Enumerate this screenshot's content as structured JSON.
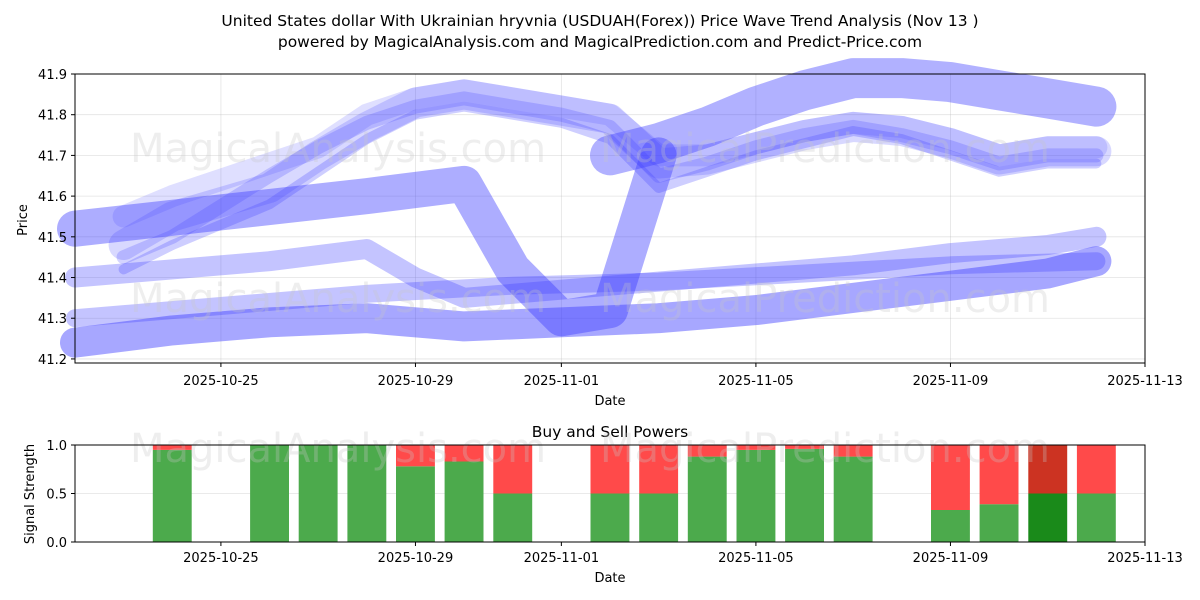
{
  "title_line1": "United States dollar With Ukrainian hryvnia (USDUAH(Forex)) Price Wave Trend Analysis (Nov 13 )",
  "title_line2": "powered by MagicalAnalysis.com and MagicalPrediction.com and Predict-Price.com",
  "watermarks": [
    "MagicalAnalysis.com",
    "MagicalPrediction.com",
    "MagicalAnalysis.com",
    "MagicalPrediction.com",
    "MagicalAnalysis.com",
    "MagicalPrediction.com"
  ],
  "colors": {
    "wave": "#3b3bff",
    "buy": "#4caa4c",
    "sell": "#ff4a4a",
    "buy_strong": "#1a8a1a",
    "sell_strong": "#cc3322"
  },
  "chart_data": [
    {
      "type": "line",
      "name": "price-wave-trend",
      "xlabel": "Date",
      "ylabel": "Price",
      "xlim": [
        "2025-10-22",
        "2025-11-13"
      ],
      "ylim": [
        41.19,
        41.9
      ],
      "x_ticks": [
        "2025-10-25",
        "2025-10-29",
        "2025-11-01",
        "2025-11-05",
        "2025-11-09",
        "2025-11-13"
      ],
      "y_ticks": [
        "41.2",
        "41.3",
        "41.4",
        "41.5",
        "41.6",
        "41.7",
        "41.8",
        "41.9"
      ],
      "grid": true,
      "series": [
        {
          "name": "upper-wave-a",
          "x": [
            "2025-10-23",
            "2025-10-24",
            "2025-10-26",
            "2025-10-27",
            "2025-10-28",
            "2025-10-29",
            "2025-10-30",
            "2025-10-31",
            "2025-11-01",
            "2025-11-02",
            "2025-11-03",
            "2025-11-04",
            "2025-11-05",
            "2025-11-06",
            "2025-11-07",
            "2025-11-08",
            "2025-11-09",
            "2025-11-10",
            "2025-11-11",
            "2025-11-12"
          ],
          "y": [
            41.45,
            41.5,
            41.65,
            41.72,
            41.78,
            41.82,
            41.84,
            41.82,
            41.8,
            41.77,
            41.65,
            41.68,
            41.72,
            41.75,
            41.77,
            41.75,
            41.72,
            41.68,
            41.7,
            41.7
          ]
        },
        {
          "name": "upper-wave-b",
          "x": [
            "2025-10-23",
            "2025-10-24",
            "2025-10-26",
            "2025-10-27",
            "2025-10-28",
            "2025-10-29",
            "2025-10-30",
            "2025-10-31",
            "2025-11-01",
            "2025-11-02",
            "2025-11-03",
            "2025-11-04",
            "2025-11-05",
            "2025-11-06",
            "2025-11-07",
            "2025-11-08",
            "2025-11-09",
            "2025-11-10",
            "2025-11-11",
            "2025-11-12"
          ],
          "y": [
            41.55,
            41.6,
            41.68,
            41.72,
            41.8,
            41.84,
            41.86,
            41.84,
            41.82,
            41.8,
            41.7,
            41.7,
            41.73,
            41.76,
            41.78,
            41.77,
            41.74,
            41.7,
            41.72,
            41.72
          ]
        },
        {
          "name": "upper-wave-c",
          "x": [
            "2025-10-23",
            "2025-10-24",
            "2025-10-26",
            "2025-10-27",
            "2025-10-28",
            "2025-10-29",
            "2025-10-30",
            "2025-10-31",
            "2025-11-01",
            "2025-11-02",
            "2025-11-03",
            "2025-11-04",
            "2025-11-05",
            "2025-11-06",
            "2025-11-07",
            "2025-11-08",
            "2025-11-09",
            "2025-11-10",
            "2025-11-11",
            "2025-11-12"
          ],
          "y": [
            41.42,
            41.48,
            41.58,
            41.66,
            41.74,
            41.8,
            41.82,
            41.8,
            41.78,
            41.74,
            41.62,
            41.66,
            41.7,
            41.73,
            41.76,
            41.74,
            41.7,
            41.66,
            41.68,
            41.68
          ]
        },
        {
          "name": "upper-wave-d",
          "x": [
            "2025-10-23",
            "2025-10-24",
            "2025-10-26",
            "2025-10-27",
            "2025-10-28",
            "2025-10-29",
            "2025-10-30",
            "2025-10-31",
            "2025-11-01",
            "2025-11-02",
            "2025-11-03",
            "2025-11-04",
            "2025-11-05",
            "2025-11-06",
            "2025-11-07",
            "2025-11-08",
            "2025-11-09",
            "2025-11-10",
            "2025-11-11",
            "2025-11-12"
          ],
          "y": [
            41.48,
            41.55,
            41.62,
            41.7,
            41.77,
            41.83,
            41.85,
            41.83,
            41.81,
            41.79,
            41.68,
            41.69,
            41.72,
            41.75,
            41.77,
            41.76,
            41.73,
            41.69,
            41.71,
            41.71
          ]
        },
        {
          "name": "high-arc",
          "x": [
            "2025-11-02",
            "2025-11-03",
            "2025-11-04",
            "2025-11-05",
            "2025-11-06",
            "2025-11-07",
            "2025-11-08",
            "2025-11-09",
            "2025-11-10",
            "2025-11-11",
            "2025-11-12"
          ],
          "y": [
            41.7,
            41.73,
            41.77,
            41.82,
            41.86,
            41.89,
            41.89,
            41.88,
            41.86,
            41.84,
            41.82
          ]
        },
        {
          "name": "swing-wave",
          "x": [
            "2025-10-22",
            "2025-10-25",
            "2025-10-28",
            "2025-10-30",
            "2025-10-31",
            "2025-11-01",
            "2025-11-02",
            "2025-11-03"
          ],
          "y": [
            41.52,
            41.56,
            41.6,
            41.63,
            41.42,
            41.3,
            41.32,
            41.7
          ]
        },
        {
          "name": "lower-wave-a",
          "x": [
            "2025-10-22",
            "2025-10-24",
            "2025-10-26",
            "2025-10-28",
            "2025-10-29",
            "2025-10-30",
            "2025-11-01",
            "2025-11-03",
            "2025-11-05",
            "2025-11-07",
            "2025-11-09",
            "2025-11-11",
            "2025-11-12"
          ],
          "y": [
            41.4,
            41.42,
            41.44,
            41.47,
            41.4,
            41.35,
            41.37,
            41.39,
            41.41,
            41.43,
            41.46,
            41.48,
            41.5
          ]
        },
        {
          "name": "lower-wave-b",
          "x": [
            "2025-10-22",
            "2025-10-24",
            "2025-10-26",
            "2025-10-28",
            "2025-10-30",
            "2025-11-01",
            "2025-11-03",
            "2025-11-05",
            "2025-11-07",
            "2025-11-09",
            "2025-11-11",
            "2025-11-12"
          ],
          "y": [
            41.24,
            41.27,
            41.29,
            41.3,
            41.28,
            41.29,
            41.3,
            41.32,
            41.35,
            41.38,
            41.41,
            41.44
          ]
        },
        {
          "name": "lower-wave-c",
          "x": [
            "2025-10-22",
            "2025-10-25",
            "2025-10-28",
            "2025-10-31",
            "2025-11-03",
            "2025-11-06",
            "2025-11-09",
            "2025-11-12"
          ],
          "y": [
            41.3,
            41.33,
            41.36,
            41.38,
            41.39,
            41.41,
            41.43,
            41.44
          ]
        }
      ]
    },
    {
      "type": "bar",
      "name": "buy-and-sell-powers",
      "title": "Buy and Sell Powers",
      "xlabel": "Date",
      "ylabel": "Signal Strength",
      "xlim": [
        "2025-10-22",
        "2025-11-13"
      ],
      "ylim": [
        0,
        1
      ],
      "x_ticks": [
        "2025-10-25",
        "2025-10-29",
        "2025-11-01",
        "2025-11-05",
        "2025-11-09",
        "2025-11-13"
      ],
      "y_ticks": [
        "0.0",
        "0.5",
        "1.0"
      ],
      "categories": [
        "2025-10-24",
        "2025-10-26",
        "2025-10-27",
        "2025-10-28",
        "2025-10-29",
        "2025-10-30",
        "2025-10-31",
        "2025-11-02",
        "2025-11-03",
        "2025-11-04",
        "2025-11-05",
        "2025-11-06",
        "2025-11-07",
        "2025-11-09",
        "2025-11-10",
        "2025-11-11",
        "2025-11-12"
      ],
      "series": [
        {
          "name": "buy",
          "values": [
            0.95,
            1.0,
            1.0,
            1.0,
            0.78,
            0.83,
            0.5,
            0.5,
            0.5,
            0.88,
            0.95,
            0.96,
            0.88,
            0.33,
            0.39,
            0.5,
            0.5
          ]
        },
        {
          "name": "sell",
          "values": [
            0.05,
            0.0,
            0.0,
            0.0,
            0.22,
            0.17,
            0.5,
            0.5,
            0.5,
            0.12,
            0.05,
            0.04,
            0.12,
            0.67,
            0.61,
            0.5,
            0.5
          ]
        }
      ],
      "strong_index": 15
    }
  ]
}
